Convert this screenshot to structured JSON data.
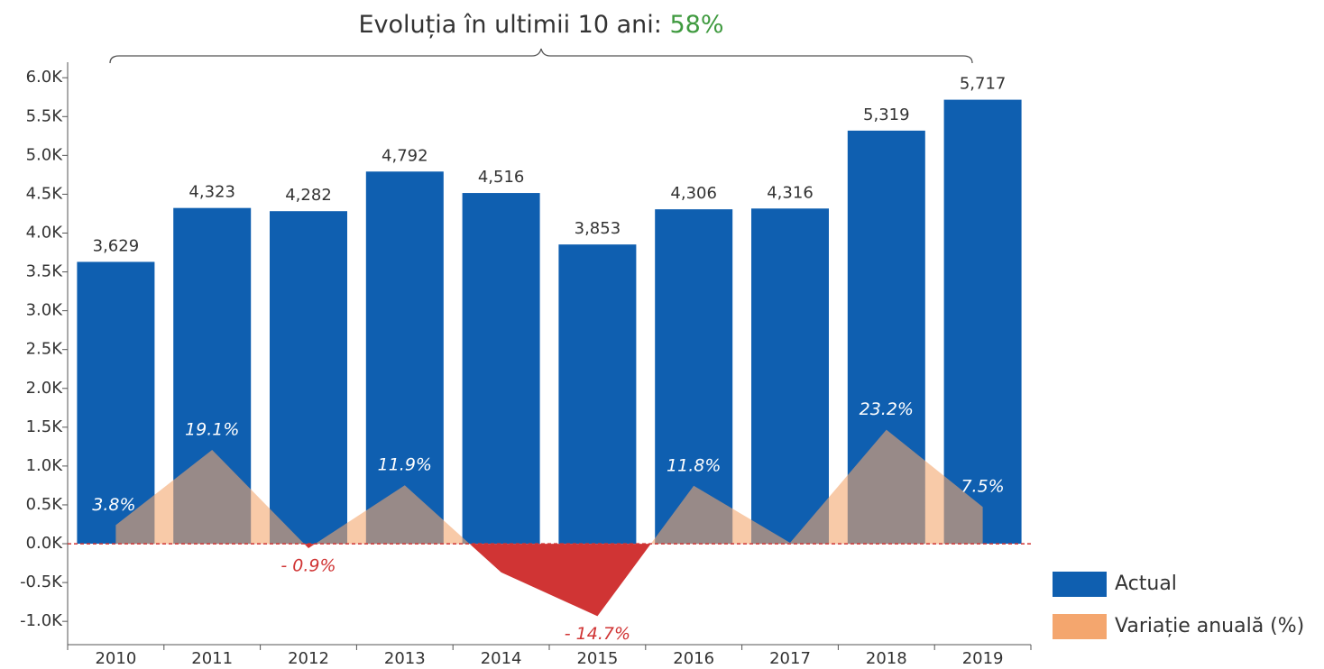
{
  "chart_data": {
    "type": "bar",
    "title": "Evoluția în ultimii 10 ani:",
    "title_value": "58%",
    "title_value_color": "#3f9a3f",
    "categories": [
      "2010",
      "2011",
      "2012",
      "2013",
      "2014",
      "2015",
      "2016",
      "2017",
      "2018",
      "2019"
    ],
    "series": [
      {
        "name": "Actual",
        "type": "bar",
        "color": "#0f5fb0",
        "values": [
          3629,
          4323,
          4282,
          4792,
          4516,
          3853,
          4306,
          4316,
          5319,
          5717
        ],
        "value_labels": [
          "3,629",
          "4,323",
          "4,282",
          "4,792",
          "4,516",
          "3,853",
          "4,306",
          "4,316",
          "5,319",
          "5,717"
        ]
      },
      {
        "name": "Variație anuală (%)",
        "type": "area",
        "axis": "y2",
        "color": "#f4a66e",
        "negative_color": "#d03434",
        "values": [
          3.8,
          19.1,
          -0.9,
          11.9,
          -5.8,
          -14.7,
          11.8,
          0.2,
          23.2,
          7.5
        ],
        "value_labels": [
          "3.8%",
          "19.1%",
          "- 0.9%",
          "11.9%",
          null,
          "- 14.7%",
          "11.8%",
          null,
          "23.2%",
          "7.5%"
        ]
      }
    ],
    "ylim": [
      -1300,
      6200
    ],
    "yticks": [
      {
        "value": -1000,
        "label": "-1.0K"
      },
      {
        "value": -500,
        "label": "-0.5K"
      },
      {
        "value": 0,
        "label": "0.0K"
      },
      {
        "value": 500,
        "label": "0.5K"
      },
      {
        "value": 1000,
        "label": "1.0K"
      },
      {
        "value": 1500,
        "label": "1.5K"
      },
      {
        "value": 2000,
        "label": "2.0K"
      },
      {
        "value": 2500,
        "label": "2.5K"
      },
      {
        "value": 3000,
        "label": "3.0K"
      },
      {
        "value": 3500,
        "label": "3.5K"
      },
      {
        "value": 4000,
        "label": "4.0K"
      },
      {
        "value": 4500,
        "label": "4.5K"
      },
      {
        "value": 5000,
        "label": "5.0K"
      },
      {
        "value": 5500,
        "label": "5.5K"
      },
      {
        "value": 6000,
        "label": "6.0K"
      }
    ],
    "y2lim": [
      -20.5,
      97.9
    ],
    "legend": "right-bottom"
  }
}
